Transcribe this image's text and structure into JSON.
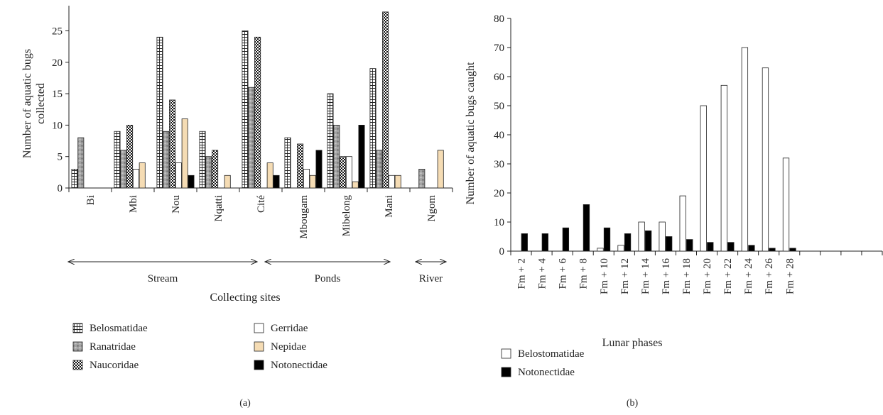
{
  "chart_data": [
    {
      "type": "bar",
      "panel_label": "(a)",
      "xlabel": "Collecting sites",
      "ylabel": "Number of aquatic bugs\ncollected",
      "ylim": [
        0,
        29
      ],
      "yticks": [
        0,
        5,
        10,
        15,
        20,
        25
      ],
      "grid": false,
      "categories": [
        "Bi",
        "Mbi",
        "Nou",
        "Nqatti",
        "Cité",
        "Mbougam",
        "Mibelong",
        "Mani",
        "Ngom"
      ],
      "groups": [
        {
          "label": "Stream",
          "from": 0,
          "to": 4
        },
        {
          "label": "Ponds",
          "from": 5,
          "to": 7
        },
        {
          "label": "River",
          "from": 8,
          "to": 8
        }
      ],
      "series": [
        {
          "name": "Belosmatidae",
          "values": [
            3,
            9,
            24,
            9,
            25,
            8,
            15,
            19,
            0
          ]
        },
        {
          "name": "Ranatridae",
          "values": [
            8,
            6,
            9,
            5,
            16,
            0,
            10,
            6,
            3
          ]
        },
        {
          "name": "Naucoridae",
          "values": [
            0,
            10,
            14,
            6,
            24,
            7,
            5,
            28,
            0
          ]
        },
        {
          "name": "Gerridae",
          "values": [
            0,
            3,
            4,
            0,
            0,
            3,
            5,
            2,
            0
          ]
        },
        {
          "name": "Nepidae",
          "values": [
            0,
            4,
            11,
            2,
            4,
            2,
            1,
            2,
            6
          ]
        },
        {
          "name": "Notonectidae",
          "values": [
            0,
            0,
            2,
            0,
            2,
            6,
            10,
            0,
            0
          ]
        }
      ],
      "legend_position": "bottom",
      "colors": {
        "Belosmatidae": "#ffffff",
        "Ranatridae": "#9a9a9a",
        "Naucoridae": "#ffffff",
        "Gerridae": "#ffffff",
        "Nepidae": "#f5dcb4",
        "Notonectidae": "#000000"
      }
    },
    {
      "type": "bar",
      "panel_label": "(b)",
      "xlabel": "Lunar phases",
      "ylabel": "Number of aquatic bugs caught",
      "ylim": [
        0,
        80
      ],
      "yticks": [
        0,
        10,
        20,
        30,
        40,
        50,
        60,
        70,
        80
      ],
      "grid": false,
      "categories": [
        "Fm + 2",
        "Fm + 4",
        "Fm + 6",
        "Fm + 8",
        "Fm + 10",
        "Fm + 12",
        "Fm + 14",
        "Fm + 16",
        "Fm + 18",
        "Fm + 20",
        "Fm + 22",
        "Fm + 24",
        "Fm + 26",
        "Fm + 28",
        "",
        "",
        "",
        ""
      ],
      "series": [
        {
          "name": "Belostomatidae",
          "values": [
            0,
            0,
            0,
            0,
            1,
            2,
            10,
            10,
            19,
            50,
            57,
            70,
            63,
            32,
            0,
            0,
            0,
            0
          ]
        },
        {
          "name": "Notonectidae",
          "values": [
            6,
            6,
            8,
            16,
            8,
            6,
            7,
            5,
            4,
            3,
            3,
            2,
            1,
            1,
            0,
            0,
            0,
            0
          ]
        }
      ],
      "legend_position": "bottom-left",
      "colors": {
        "Belostomatidae": "#ffffff",
        "Notonectidae": "#000000"
      }
    }
  ]
}
